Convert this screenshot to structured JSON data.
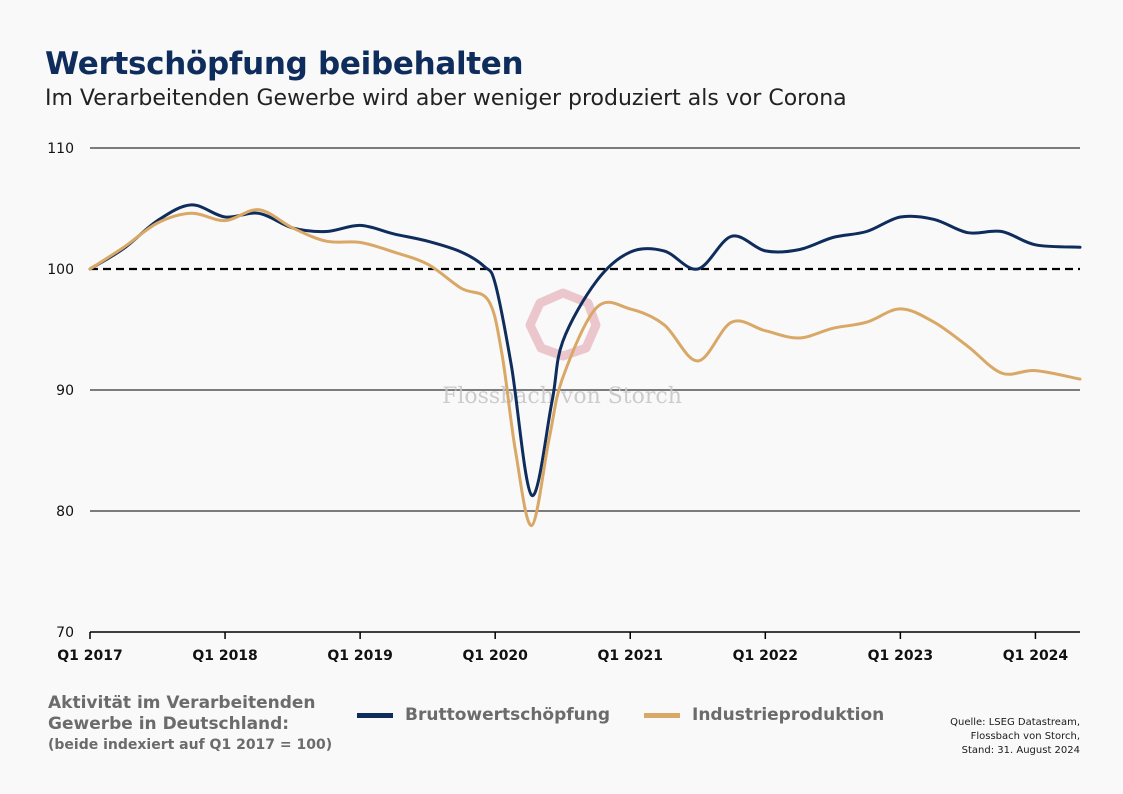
{
  "header": {
    "title": "Wertschöpfung beibehalten",
    "subtitle": "Im Verarbeitenden Gewerbe wird aber weniger produziert als vor Corona"
  },
  "note": {
    "line1": "Aktivität im Verarbeitenden",
    "line2": "Gewerbe in Deutschland:",
    "line3": "(beide indexiert auf Q1 2017 = 100)"
  },
  "source": {
    "line1": "Quelle: LSEG Datastream,",
    "line2": "Flossbach von Storch,",
    "line3": "Stand: 31. August 2024"
  },
  "watermark": "Flossbach von Storch",
  "colors": {
    "navy": "#0f2d5c",
    "gold": "#d9a866",
    "grid": "#000000",
    "background": "#f9f9f9"
  },
  "chart_data": {
    "type": "line",
    "title": "Wertschöpfung beibehalten",
    "subtitle": "Im Verarbeitenden Gewerbe wird aber weniger produziert als vor Corona",
    "xlim": [
      2017.0,
      2024.33
    ],
    "ylim": [
      70,
      110
    ],
    "yticks": [
      70,
      80,
      90,
      100,
      110
    ],
    "xticks": [
      {
        "x": 2017,
        "label": "Q1 2017"
      },
      {
        "x": 2018,
        "label": "Q1 2018"
      },
      {
        "x": 2019,
        "label": "Q1 2019"
      },
      {
        "x": 2020,
        "label": "Q1 2020"
      },
      {
        "x": 2021,
        "label": "Q1 2021"
      },
      {
        "x": 2022,
        "label": "Q1 2022"
      },
      {
        "x": 2023,
        "label": "Q1 2023"
      },
      {
        "x": 2024,
        "label": "Q1 2024"
      }
    ],
    "reference_line": {
      "y": 100,
      "style": "dashed"
    },
    "grid": "horizontal",
    "legend_position": "bottom",
    "series": [
      {
        "name": "Bruttowertschöpfung",
        "color": "#0f2d5c",
        "points": [
          [
            2017.0,
            100.0
          ],
          [
            2017.25,
            101.7
          ],
          [
            2017.5,
            104.0
          ],
          [
            2017.75,
            105.3
          ],
          [
            2018.0,
            104.3
          ],
          [
            2018.25,
            104.6
          ],
          [
            2018.5,
            103.4
          ],
          [
            2018.75,
            103.1
          ],
          [
            2019.0,
            103.6
          ],
          [
            2019.25,
            102.9
          ],
          [
            2019.5,
            102.3
          ],
          [
            2019.75,
            101.4
          ],
          [
            2019.92,
            100.2
          ],
          [
            2020.0,
            98.8
          ],
          [
            2020.12,
            92.0
          ],
          [
            2020.27,
            81.3
          ],
          [
            2020.42,
            89.0
          ],
          [
            2020.5,
            94.0
          ],
          [
            2020.75,
            99.0
          ],
          [
            2021.0,
            101.4
          ],
          [
            2021.25,
            101.5
          ],
          [
            2021.5,
            100.0
          ],
          [
            2021.75,
            102.7
          ],
          [
            2022.0,
            101.5
          ],
          [
            2022.25,
            101.6
          ],
          [
            2022.5,
            102.6
          ],
          [
            2022.75,
            103.1
          ],
          [
            2023.0,
            104.3
          ],
          [
            2023.25,
            104.1
          ],
          [
            2023.5,
            103.0
          ],
          [
            2023.75,
            103.1
          ],
          [
            2024.0,
            102.0
          ],
          [
            2024.33,
            101.8
          ]
        ]
      },
      {
        "name": "Industrieproduktion",
        "color": "#d9a866",
        "points": [
          [
            2017.0,
            100.0
          ],
          [
            2017.25,
            101.8
          ],
          [
            2017.5,
            103.8
          ],
          [
            2017.75,
            104.6
          ],
          [
            2018.0,
            104.0
          ],
          [
            2018.25,
            104.9
          ],
          [
            2018.5,
            103.4
          ],
          [
            2018.75,
            102.3
          ],
          [
            2019.0,
            102.2
          ],
          [
            2019.25,
            101.4
          ],
          [
            2019.5,
            100.4
          ],
          [
            2019.75,
            98.4
          ],
          [
            2019.95,
            97.4
          ],
          [
            2020.05,
            93.0
          ],
          [
            2020.15,
            85.0
          ],
          [
            2020.27,
            78.8
          ],
          [
            2020.4,
            86.0
          ],
          [
            2020.5,
            91.0
          ],
          [
            2020.75,
            96.8
          ],
          [
            2021.0,
            96.7
          ],
          [
            2021.25,
            95.4
          ],
          [
            2021.5,
            92.4
          ],
          [
            2021.75,
            95.6
          ],
          [
            2022.0,
            94.9
          ],
          [
            2022.25,
            94.3
          ],
          [
            2022.5,
            95.1
          ],
          [
            2022.75,
            95.6
          ],
          [
            2023.0,
            96.7
          ],
          [
            2023.25,
            95.6
          ],
          [
            2023.5,
            93.6
          ],
          [
            2023.75,
            91.4
          ],
          [
            2024.0,
            91.6
          ],
          [
            2024.33,
            90.9
          ]
        ]
      }
    ]
  }
}
